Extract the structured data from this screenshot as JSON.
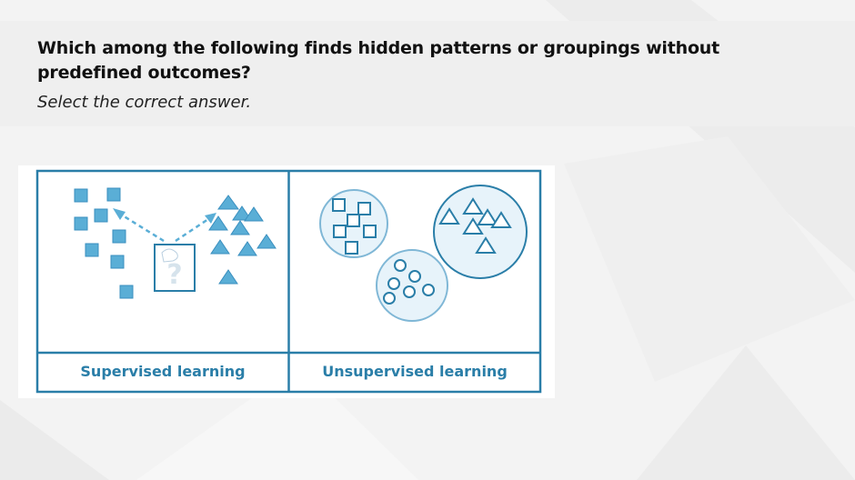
{
  "question": {
    "text": "Which among the following finds hidden patterns or groupings without predefined outcomes?",
    "instruction": "Select the correct answer."
  },
  "figure": {
    "panels": [
      {
        "label": "Supervised learning"
      },
      {
        "label": "Unsupervised learning"
      }
    ]
  },
  "colors": {
    "accent": "#2a7ea8",
    "shape_fill": "#5aaed6",
    "cluster_fill": "#e7f3fa",
    "band": "#efefef",
    "background": "#f3f3f3"
  }
}
